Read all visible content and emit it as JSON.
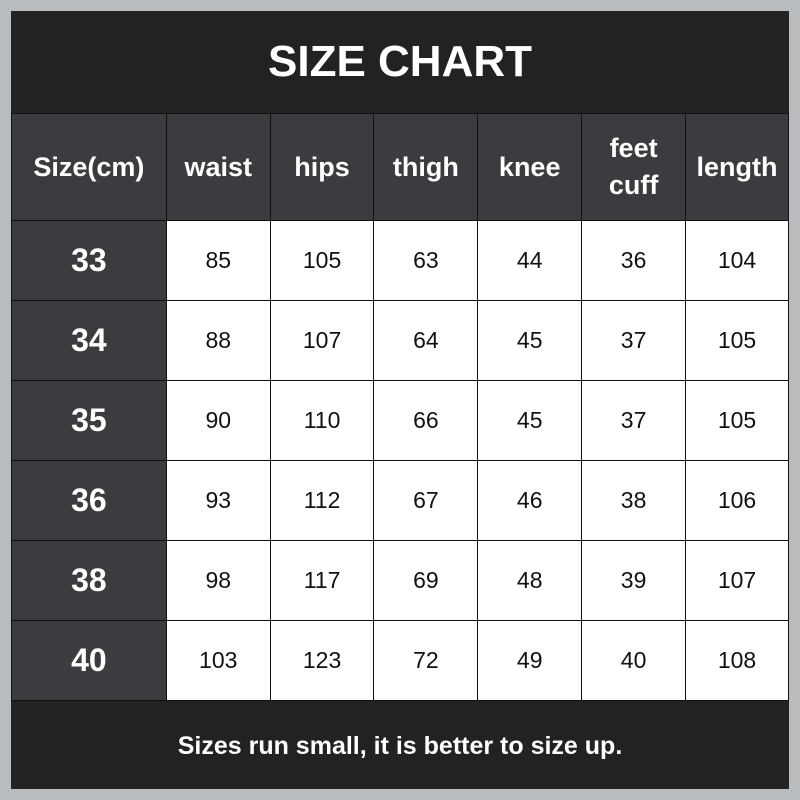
{
  "title": "SIZE CHART",
  "headers": [
    "Size(cm)",
    "waist",
    "hips",
    "thigh",
    "knee",
    "feet cuff",
    "length"
  ],
  "rows": [
    [
      "33",
      "85",
      "105",
      "63",
      "44",
      "36",
      "104"
    ],
    [
      "34",
      "88",
      "107",
      "64",
      "45",
      "37",
      "105"
    ],
    [
      "35",
      "90",
      "110",
      "66",
      "45",
      "37",
      "105"
    ],
    [
      "36",
      "93",
      "112",
      "67",
      "46",
      "38",
      "106"
    ],
    [
      "38",
      "98",
      "117",
      "69",
      "48",
      "39",
      "107"
    ],
    [
      "40",
      "103",
      "123",
      "72",
      "49",
      "40",
      "108"
    ]
  ],
  "footer": "Sizes run small, it is better to size up.",
  "colors": {
    "header_bg": "#3c3b40",
    "frame_bg": "#222223",
    "border": "#b9bcbf"
  }
}
